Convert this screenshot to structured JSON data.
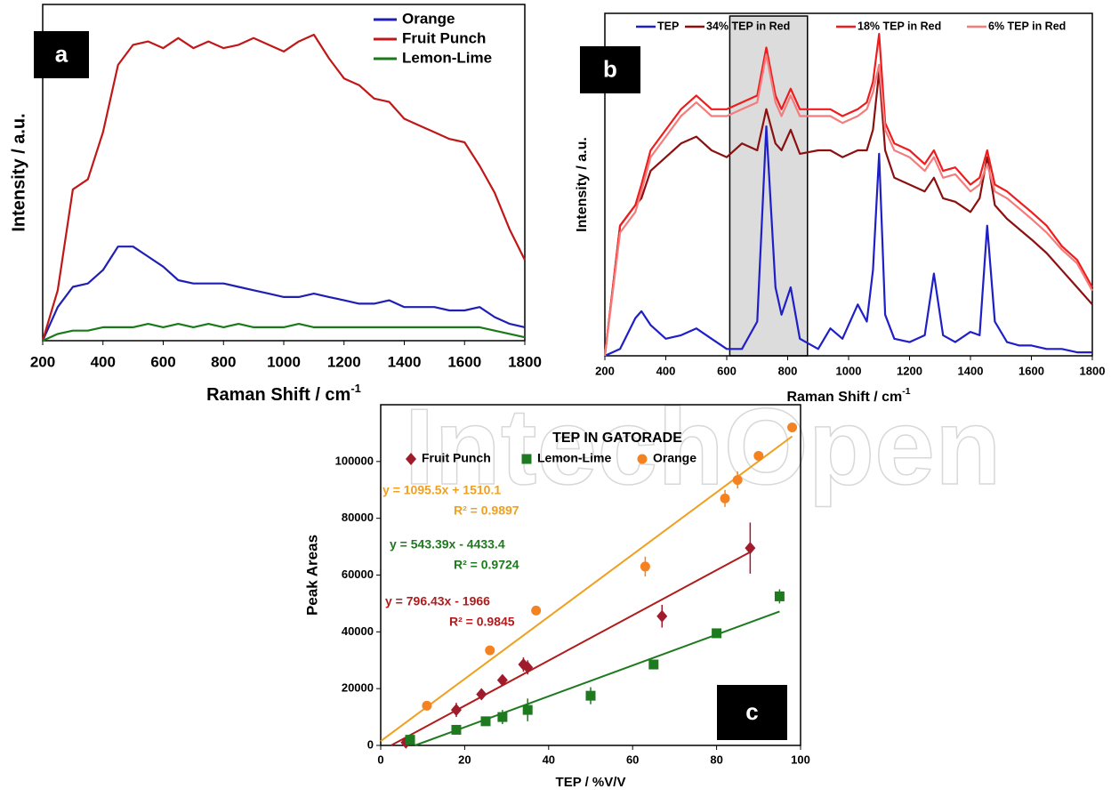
{
  "watermark": "IntechOpen",
  "chart_data": [
    {
      "type": "line",
      "panel_label": "a",
      "x_label": "Raman Shift / cm",
      "x_label_sup": "-1",
      "y_label": "Intensity / a.u.",
      "x": [
        200,
        250,
        300,
        350,
        400,
        450,
        500,
        550,
        600,
        650,
        700,
        750,
        800,
        850,
        900,
        950,
        1000,
        1050,
        1100,
        1150,
        1200,
        1250,
        1300,
        1350,
        1400,
        1450,
        1500,
        1550,
        1600,
        1650,
        1700,
        1750,
        1800
      ],
      "xlim": [
        200,
        1800
      ],
      "xticks": [
        200,
        400,
        600,
        800,
        1000,
        1200,
        1400,
        1600,
        1800
      ],
      "ylim": [
        0,
        100
      ],
      "legend": "top-right",
      "series": [
        {
          "name": "Orange",
          "color": "#1f1fb4",
          "values": [
            0,
            10,
            16,
            17,
            21,
            28,
            28,
            25,
            22,
            18,
            17,
            17,
            17,
            16,
            15,
            14,
            13,
            13,
            14,
            13,
            12,
            11,
            11,
            12,
            10,
            10,
            10,
            9,
            9,
            10,
            7,
            5,
            4
          ]
        },
        {
          "name": "Fruit Punch",
          "color": "#c01818",
          "values": [
            0,
            15,
            45,
            48,
            62,
            82,
            88,
            89,
            87,
            90,
            87,
            89,
            87,
            88,
            90,
            88,
            86,
            89,
            91,
            84,
            78,
            76,
            72,
            71,
            66,
            64,
            62,
            60,
            59,
            52,
            44,
            33,
            24
          ]
        },
        {
          "name": "Lemon-Lime",
          "color": "#1a7a1a",
          "values": [
            0,
            2,
            3,
            3,
            4,
            4,
            4,
            5,
            4,
            5,
            4,
            5,
            4,
            5,
            4,
            4,
            4,
            5,
            4,
            4,
            4,
            4,
            4,
            4,
            4,
            4,
            4,
            4,
            4,
            4,
            3,
            2,
            1
          ]
        }
      ]
    },
    {
      "type": "line",
      "panel_label": "b",
      "x_label": "Raman Shift / cm",
      "x_label_sup": "-1",
      "y_label": "Intensity / a.u.",
      "x": [
        200,
        250,
        300,
        320,
        350,
        400,
        450,
        500,
        550,
        600,
        650,
        700,
        730,
        760,
        780,
        810,
        840,
        900,
        940,
        980,
        1030,
        1060,
        1080,
        1100,
        1120,
        1150,
        1200,
        1250,
        1280,
        1310,
        1350,
        1400,
        1430,
        1455,
        1480,
        1520,
        1560,
        1600,
        1650,
        1700,
        1750,
        1800
      ],
      "xlim": [
        200,
        1800
      ],
      "xticks": [
        200,
        400,
        600,
        800,
        1000,
        1200,
        1400,
        1600,
        1800
      ],
      "ylim": [
        0,
        100
      ],
      "shaded_region": [
        610,
        865
      ],
      "legend": "top",
      "series": [
        {
          "name": "TEP",
          "color": "#1f1fc8",
          "values": [
            0,
            2,
            11,
            13,
            9,
            5,
            6,
            8,
            5,
            2,
            2,
            10,
            67,
            20,
            12,
            20,
            5,
            2,
            8,
            5,
            15,
            10,
            25,
            59,
            12,
            5,
            4,
            6,
            24,
            6,
            4,
            7,
            6,
            38,
            10,
            4,
            3,
            3,
            2,
            2,
            1,
            1
          ]
        },
        {
          "name": "34% TEP in Red",
          "color": "#8b1010",
          "values": [
            0,
            38,
            44,
            46,
            54,
            58,
            62,
            64,
            60,
            58,
            62,
            60,
            72,
            62,
            60,
            66,
            59,
            60,
            60,
            58,
            60,
            60,
            66,
            83,
            60,
            52,
            50,
            48,
            52,
            46,
            45,
            42,
            46,
            58,
            44,
            40,
            37,
            34,
            30,
            25,
            20,
            15
          ]
        },
        {
          "name": "18% TEP in Red",
          "color": "#ee1c1c",
          "values": [
            0,
            38,
            44,
            50,
            60,
            66,
            72,
            76,
            72,
            72,
            74,
            76,
            90,
            76,
            72,
            78,
            72,
            72,
            72,
            70,
            72,
            74,
            80,
            94,
            68,
            62,
            60,
            56,
            60,
            54,
            55,
            50,
            52,
            60,
            50,
            48,
            45,
            42,
            38,
            32,
            28,
            20
          ]
        },
        {
          "name": "6% TEP in Red",
          "color": "#f47c7c",
          "values": [
            0,
            36,
            42,
            48,
            58,
            64,
            70,
            74,
            70,
            70,
            72,
            74,
            88,
            74,
            70,
            76,
            70,
            70,
            70,
            68,
            70,
            72,
            77,
            85,
            66,
            60,
            58,
            54,
            58,
            52,
            53,
            48,
            50,
            56,
            48,
            46,
            43,
            40,
            36,
            31,
            27,
            19
          ]
        }
      ]
    },
    {
      "type": "scatter",
      "panel_label": "c",
      "title": "TEP IN GATORADE",
      "x_label": "TEP / %V/V",
      "y_label": "Peak Areas",
      "xlim": [
        0,
        100
      ],
      "xticks": [
        0,
        20,
        40,
        60,
        80,
        100
      ],
      "ylim": [
        0,
        120000
      ],
      "yticks": [
        0,
        20000,
        40000,
        60000,
        80000,
        100000
      ],
      "legend": "top",
      "series": [
        {
          "name": "Fruit Punch",
          "color": "#a01c2c",
          "marker": "diamond",
          "x": [
            6,
            18,
            24,
            29,
            34,
            35,
            67,
            88
          ],
          "values": [
            1000,
            12500,
            18000,
            23000,
            28500,
            27500,
            45500,
            69500
          ],
          "errors": [
            800,
            2500,
            1200,
            1200,
            2500,
            2500,
            4000,
            9000
          ],
          "trendline": {
            "slope": 796.43,
            "intercept": -1966,
            "color": "#b01c1c",
            "equation": "y = 796.43x - 1966",
            "r2": "R² = 0.9845"
          }
        },
        {
          "name": "Lemon-Lime",
          "color": "#1e7a1e",
          "marker": "square",
          "x": [
            7,
            18,
            25,
            29,
            35,
            50,
            65,
            80,
            95
          ],
          "values": [
            2000,
            5500,
            8500,
            10000,
            12500,
            17500,
            28500,
            39500,
            52500
          ],
          "errors": [
            800,
            1200,
            1200,
            2500,
            4000,
            3000,
            1500,
            1000,
            2500
          ],
          "trendline": {
            "slope": 543.39,
            "intercept": -4433.4,
            "color": "#1e7a1e",
            "equation": "y = 543.39x - 4433.4",
            "r2": "R² = 0.9724"
          }
        },
        {
          "name": "Orange",
          "color": "#f58220",
          "marker": "circle",
          "x": [
            11,
            26,
            37,
            63,
            82,
            85,
            90,
            98
          ],
          "values": [
            14000,
            33500,
            47500,
            63000,
            87000,
            93500,
            102000,
            112000
          ],
          "errors": [
            800,
            800,
            800,
            3500,
            3000,
            3000,
            1000,
            1000
          ],
          "trendline": {
            "slope": 1095.5,
            "intercept": 1510.1,
            "color": "#f0a020",
            "equation": "y = 1095.5x + 1510.1",
            "r2": "R² = 0.9897"
          }
        }
      ]
    }
  ]
}
